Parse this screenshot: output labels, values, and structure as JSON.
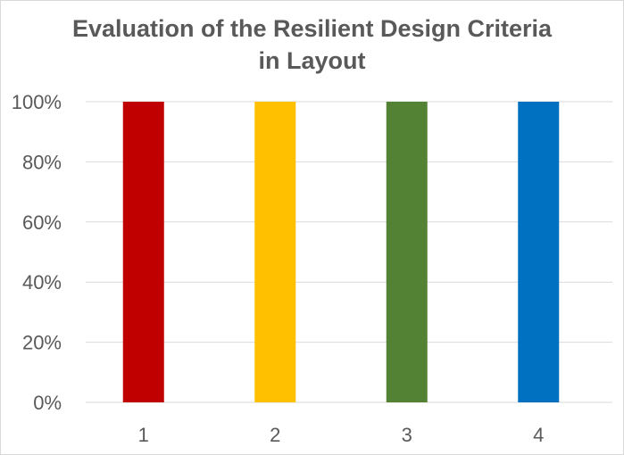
{
  "chart_data": {
    "type": "bar",
    "title_lines": [
      "Evaluation of the Resilient Design Criteria",
      "in Layout"
    ],
    "categories": [
      "1",
      "2",
      "3",
      "4"
    ],
    "values": [
      100,
      100,
      100,
      100
    ],
    "bar_colors": [
      "#c00000",
      "#ffc000",
      "#548235",
      "#0070c0"
    ],
    "ylim": [
      0,
      100
    ],
    "yticks": [
      0,
      20,
      40,
      60,
      80,
      100
    ],
    "ytick_labels": [
      "0%",
      "20%",
      "40%",
      "60%",
      "80%",
      "100%"
    ],
    "grid": true,
    "legend": "none",
    "gridline_color": "#d9d9d9",
    "axis_color": "#d9d9d9"
  }
}
